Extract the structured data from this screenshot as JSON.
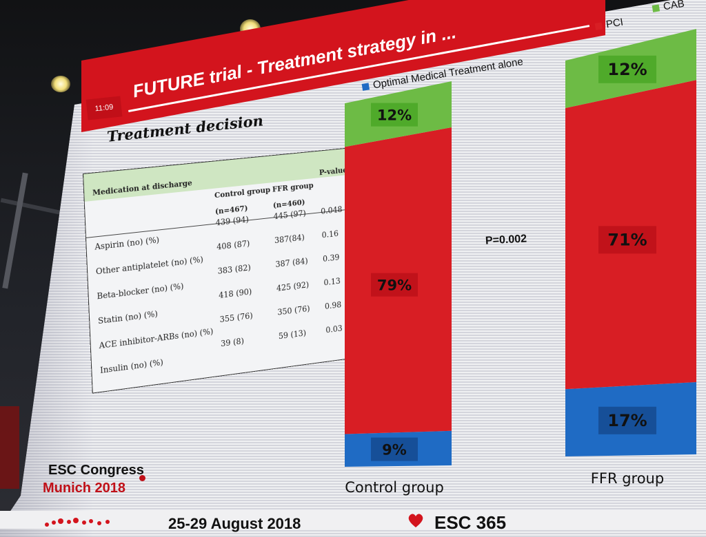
{
  "slide": {
    "time": "11:09",
    "title": "FUTURE trial - Treatment strategy in ...",
    "section_heading": "Treatment decision"
  },
  "table": {
    "header_label": "Medication at discharge",
    "col_control": "Control group",
    "col_ffr": "FFR group",
    "col_p": "P-value†",
    "n_control": "(n=467)",
    "n_ffr": "(n=460)",
    "rows": [
      {
        "label": "Aspirin (no) (%)",
        "control": "439 (94)",
        "ffr": "445 (97)",
        "p": "0.048"
      },
      {
        "label": "Other antiplatelet (no) (%)",
        "control": "408 (87)",
        "ffr": "387(84)",
        "p": "0.16"
      },
      {
        "label": "Beta-blocker (no) (%)",
        "control": "383 (82)",
        "ffr": "387 (84)",
        "p": "0.39"
      },
      {
        "label": "Statin (no) (%)",
        "control": "418 (90)",
        "ffr": "425 (92)",
        "p": "0.13"
      },
      {
        "label": "ACE inhibitor-ARBs (no) (%)",
        "control": "355 (76)",
        "ffr": "350 (76)",
        "p": "0.98"
      },
      {
        "label": "Insulin (no) (%)",
        "control": "39 (8)",
        "ffr": "59 (13)",
        "p": "0.03"
      }
    ]
  },
  "chart_data": {
    "type": "bar",
    "stacked": true,
    "categories": [
      "Control group",
      "FFR group"
    ],
    "series": [
      {
        "name": "Optimal Medical Treatment alone",
        "values": [
          9,
          17
        ],
        "labels": [
          "9%",
          "17%"
        ],
        "color": "#1f6bc4"
      },
      {
        "name": "PCI",
        "values": [
          79,
          71
        ],
        "labels": [
          "79%",
          "71%"
        ],
        "color": "#d81e24"
      },
      {
        "name": "CAB",
        "values": [
          12,
          12
        ],
        "labels": [
          "12%",
          "12%"
        ],
        "color": "#6dbb45"
      }
    ],
    "annotation": "P=0.002",
    "ylim": [
      0,
      100
    ]
  },
  "footer": {
    "congress": "ESC Congress",
    "city": "Munich 2018",
    "dates": "25-29 August 2018",
    "brand": "ESC 365"
  },
  "colors": {
    "header_red": "#d3141d",
    "omt_blue": "#1f6bc4",
    "pci_red": "#d81e24",
    "cabg_green": "#6dbb45"
  }
}
